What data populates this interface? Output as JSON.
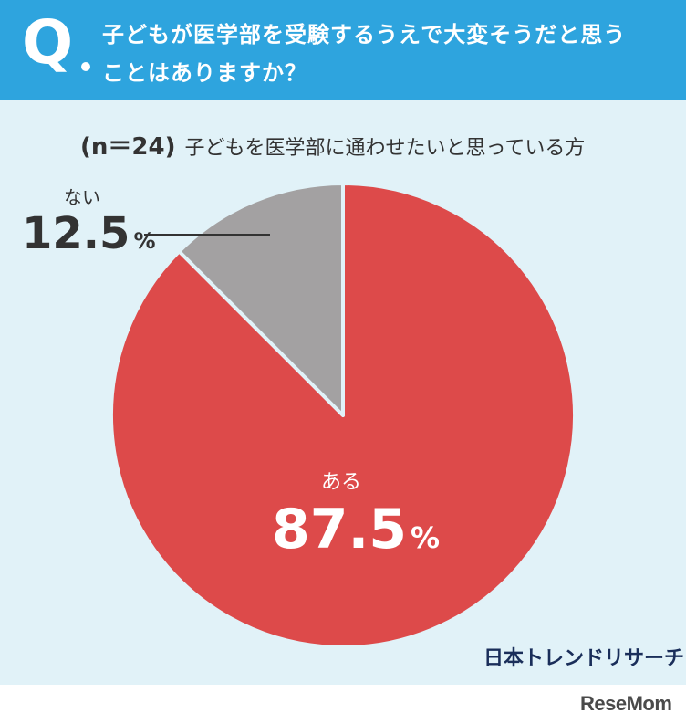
{
  "header": {
    "q_letter": "Q",
    "question_line1": "子どもが医学部を受験するうえで大変そうだと思う",
    "question_line2": "ことはありますか？",
    "bg_color": "#2ea4de"
  },
  "subtitle": {
    "n_label": "(n＝24)",
    "text": "子どもを医学部に通わせたいと思っている方"
  },
  "chart_data": {
    "type": "pie",
    "start_angle": "12 o'clock",
    "direction": "clockwise",
    "slices": [
      {
        "label": "ある",
        "value": 87.5,
        "percent_text": "87.5",
        "unit": "%",
        "color": "#dd4a4a"
      },
      {
        "label": "ない",
        "value": 12.5,
        "percent_text": "12.5",
        "unit": "%",
        "color": "#a3a1a2"
      }
    ]
  },
  "brands": {
    "survey_source": "日本トレンドリサーチ",
    "publisher": "ReseMom"
  },
  "colors": {
    "panel_bg": "#e1f2f8",
    "text_dark": "#333333",
    "separator": "#e1f2f8"
  }
}
